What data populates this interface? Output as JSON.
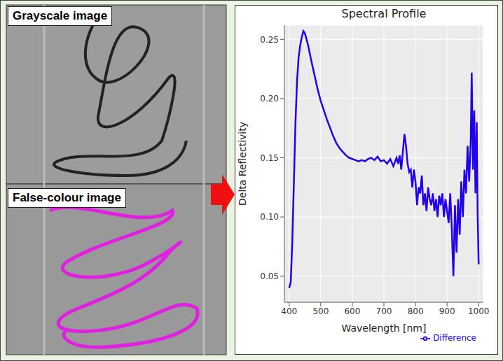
{
  "panels": [
    {
      "label": "Grayscale image"
    },
    {
      "label": "False-colour image"
    }
  ],
  "chart_data": {
    "type": "line",
    "title": "Spectral Profile",
    "x_label": "Wavelength [nm]",
    "y_label": "Delta Reflectivity",
    "x": [
      400,
      405,
      410,
      415,
      420,
      425,
      430,
      435,
      440,
      445,
      450,
      460,
      470,
      480,
      490,
      500,
      510,
      520,
      530,
      540,
      550,
      560,
      570,
      580,
      590,
      600,
      610,
      620,
      630,
      640,
      650,
      660,
      670,
      680,
      690,
      700,
      710,
      720,
      730,
      740,
      745,
      750,
      755,
      760,
      765,
      770,
      775,
      780,
      785,
      790,
      795,
      800,
      805,
      810,
      815,
      820,
      825,
      830,
      835,
      840,
      845,
      850,
      855,
      860,
      865,
      870,
      875,
      880,
      885,
      890,
      895,
      900,
      905,
      910,
      915,
      920,
      925,
      930,
      935,
      940,
      945,
      950,
      955,
      960,
      965,
      970,
      975,
      978,
      982,
      986,
      990,
      994,
      997,
      1000
    ],
    "series": [
      {
        "name": "Difference",
        "color": "#2200ee",
        "values": [
          0.04,
          0.045,
          0.08,
          0.13,
          0.18,
          0.215,
          0.235,
          0.245,
          0.252,
          0.257,
          0.255,
          0.245,
          0.232,
          0.22,
          0.208,
          0.198,
          0.19,
          0.182,
          0.175,
          0.168,
          0.162,
          0.158,
          0.155,
          0.152,
          0.15,
          0.149,
          0.148,
          0.147,
          0.148,
          0.147,
          0.149,
          0.15,
          0.148,
          0.151,
          0.147,
          0.148,
          0.145,
          0.149,
          0.143,
          0.15,
          0.145,
          0.152,
          0.14,
          0.155,
          0.17,
          0.16,
          0.145,
          0.138,
          0.14,
          0.125,
          0.14,
          0.13,
          0.11,
          0.125,
          0.12,
          0.135,
          0.11,
          0.12,
          0.105,
          0.125,
          0.115,
          0.11,
          0.12,
          0.105,
          0.115,
          0.1,
          0.118,
          0.11,
          0.12,
          0.1,
          0.115,
          0.105,
          0.095,
          0.12,
          0.09,
          0.05,
          0.11,
          0.07,
          0.115,
          0.085,
          0.13,
          0.1,
          0.14,
          0.12,
          0.16,
          0.13,
          0.165,
          0.222,
          0.14,
          0.19,
          0.12,
          0.18,
          0.1,
          0.06
        ]
      }
    ],
    "xlim": [
      385,
      1015
    ],
    "xticks": [
      400,
      500,
      600,
      700,
      800,
      900,
      1000
    ],
    "ylim": [
      0.028,
      0.262
    ],
    "yticks": [
      0.05,
      {
        "value": 0.1,
        "label": "0.10"
      },
      0.15,
      {
        "value": 0.2,
        "label": "0.20"
      },
      0.25
    ],
    "grid": true,
    "legend": "bottom"
  }
}
